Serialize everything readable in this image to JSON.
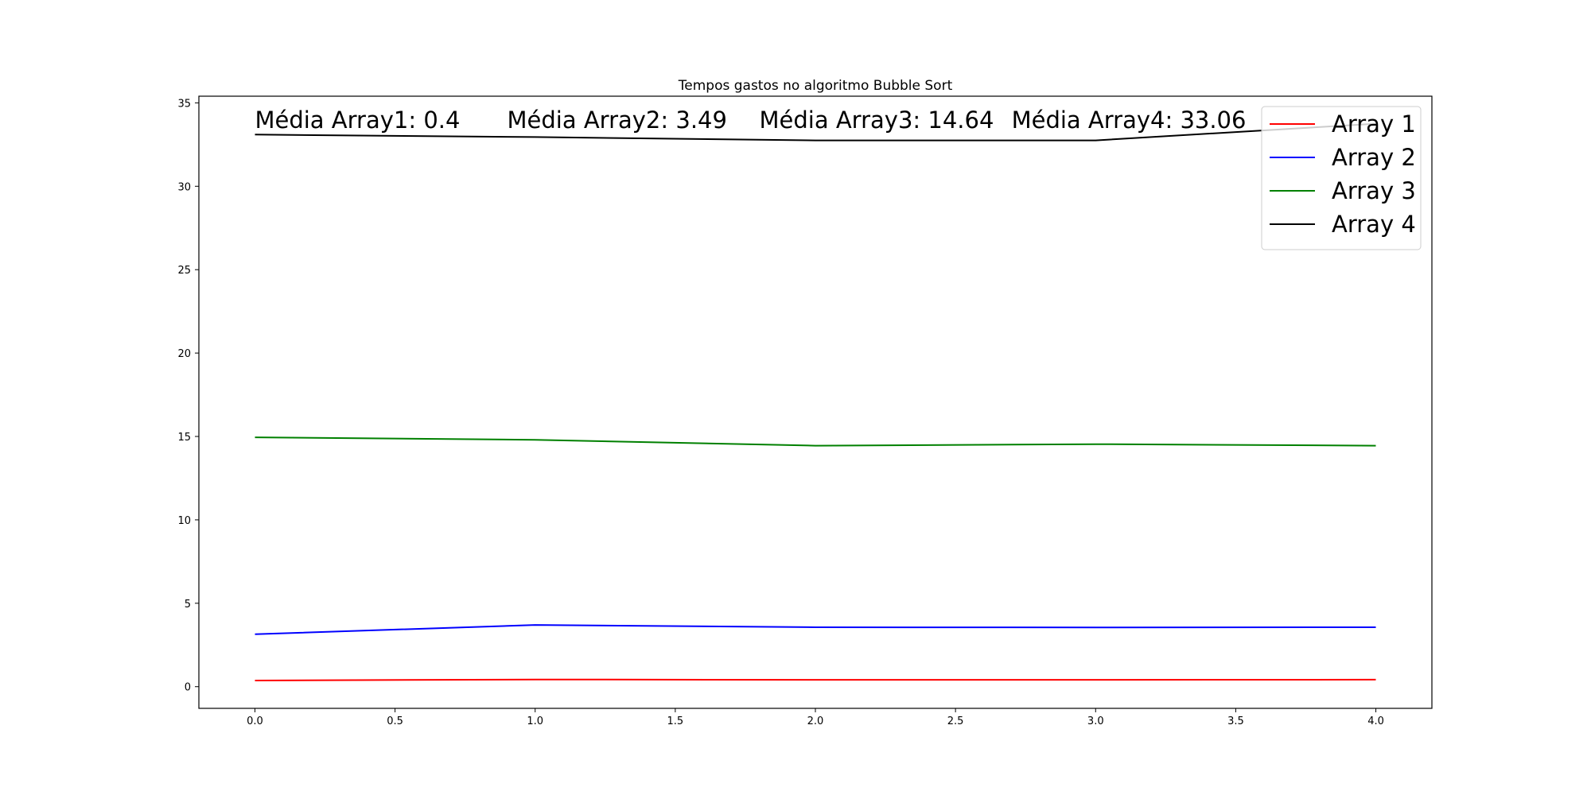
{
  "chart_data": {
    "type": "line",
    "title": "Tempos gastos no algoritmo Bubble Sort",
    "xlabel": "",
    "ylabel": "",
    "x": [
      0,
      1,
      2,
      3,
      4
    ],
    "xlim": [
      -0.2,
      4.2
    ],
    "ylim": [
      -1.3,
      35.4
    ],
    "x_ticks": [
      "0.0",
      "0.5",
      "1.0",
      "1.5",
      "2.0",
      "2.5",
      "3.0",
      "3.5",
      "4.0"
    ],
    "x_tick_values": [
      0,
      0.5,
      1,
      1.5,
      2,
      2.5,
      3,
      3.5,
      4
    ],
    "y_ticks": [
      "0",
      "5",
      "10",
      "15",
      "20",
      "25",
      "30",
      "35"
    ],
    "y_tick_values": [
      0,
      5,
      10,
      15,
      20,
      25,
      30,
      35
    ],
    "grid": false,
    "legend_position": "upper right",
    "series": [
      {
        "name": "Array 1",
        "color": "#ff0000",
        "values": [
          0.37,
          0.43,
          0.41,
          0.41,
          0.42
        ]
      },
      {
        "name": "Array 2",
        "color": "#0000ff",
        "values": [
          3.14,
          3.7,
          3.56,
          3.55,
          3.56
        ]
      },
      {
        "name": "Array 3",
        "color": "#008000",
        "values": [
          14.95,
          14.8,
          14.45,
          14.54,
          14.45
        ]
      },
      {
        "name": "Array 4",
        "color": "#000000",
        "values": [
          33.1,
          32.95,
          32.75,
          32.75,
          33.75
        ]
      }
    ],
    "annotations": [
      {
        "text": "Média Array1: 0.4",
        "x": 0,
        "y": 33.5
      },
      {
        "text": "Média Array2: 3.49",
        "x": 0.9,
        "y": 33.5
      },
      {
        "text": "Média Array3: 14.64",
        "x": 1.8,
        "y": 33.5
      },
      {
        "text": "Média Array4: 33.06",
        "x": 2.7,
        "y": 33.5
      }
    ]
  }
}
